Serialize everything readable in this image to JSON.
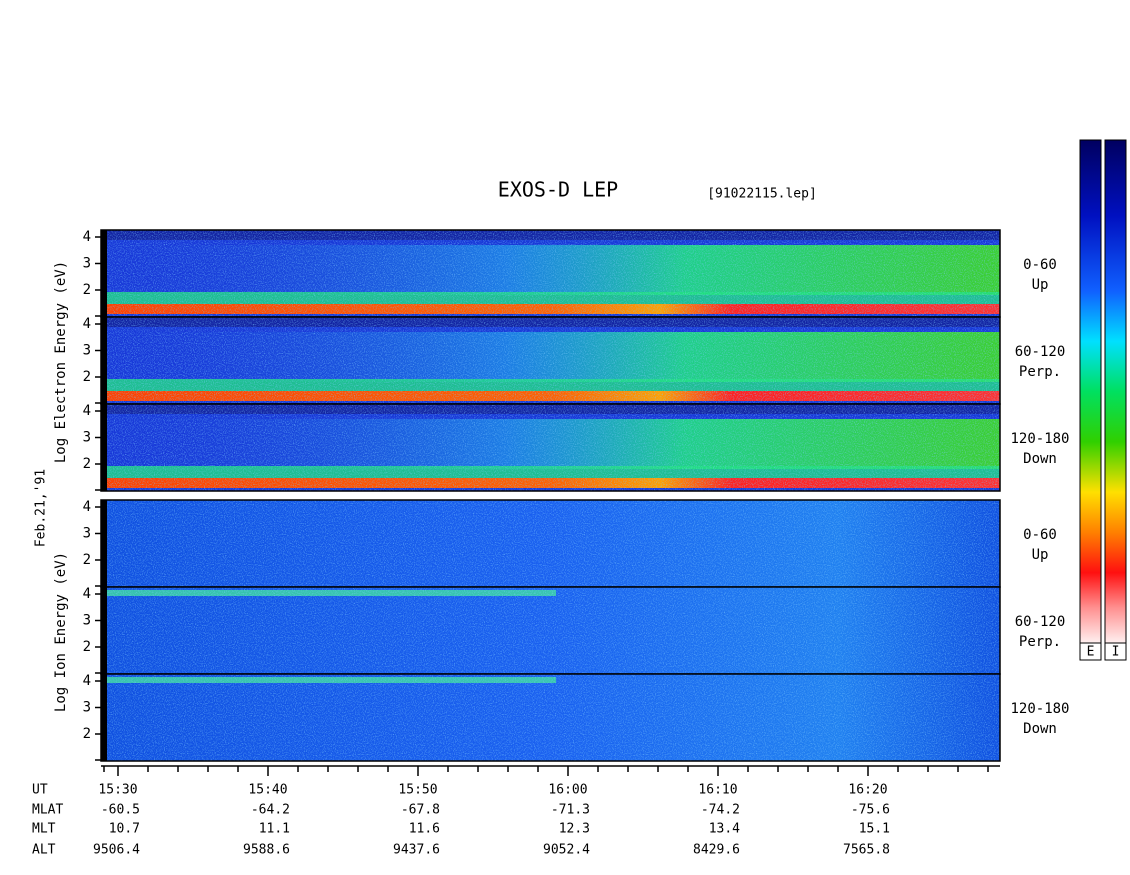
{
  "title": "EXOS-D LEP",
  "file": "[91022115.lep]",
  "date": "Feb.21,'91",
  "electron": {
    "ylabel": "Log  Electron  Energy (eV)",
    "panels": [
      {
        "range": "0-60",
        "dir": "Up",
        "yticks": [
          "2",
          "3",
          "4"
        ]
      },
      {
        "range": "60-120",
        "dir": "Perp.",
        "yticks": [
          "2",
          "3",
          "4"
        ]
      },
      {
        "range": "120-180",
        "dir": "Down",
        "yticks": [
          "2",
          "3",
          "4"
        ]
      }
    ]
  },
  "ion": {
    "ylabel": "Log  Ion  Energy (eV)",
    "panels": [
      {
        "range": "0-60",
        "dir": "Up",
        "yticks": [
          "2",
          "3",
          "4"
        ]
      },
      {
        "range": "60-120",
        "dir": "Perp.",
        "yticks": [
          "2",
          "3",
          "4"
        ]
      },
      {
        "range": "120-180",
        "dir": "Down",
        "yticks": [
          "2",
          "3",
          "4"
        ]
      }
    ]
  },
  "orbit": {
    "rows": [
      {
        "name": "UT",
        "values": [
          "15:30",
          "15:40",
          "15:50",
          "16:00",
          "16:10",
          "16:20"
        ]
      },
      {
        "name": "MLAT",
        "values": [
          "-60.5",
          "-64.2",
          "-67.8",
          "-71.3",
          "-74.2",
          "-75.6"
        ]
      },
      {
        "name": "MLT",
        "values": [
          "10.7",
          "11.1",
          "11.6",
          "12.3",
          "13.4",
          "15.1"
        ]
      },
      {
        "name": "ALT",
        "values": [
          "9506.4",
          "9588.6",
          "9437.6",
          "9052.4",
          "8429.6",
          "7565.8"
        ]
      }
    ]
  },
  "colorbars": [
    "E",
    "I"
  ]
}
